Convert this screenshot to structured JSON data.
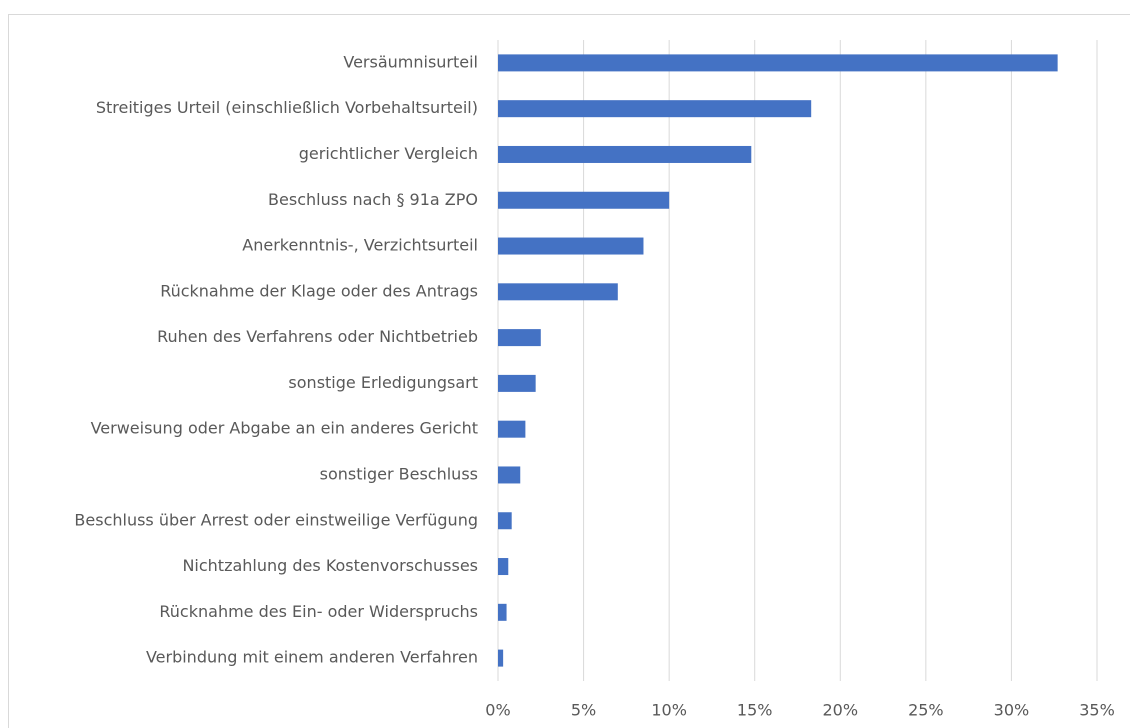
{
  "chart_data": {
    "type": "hbar",
    "categories": [
      "Versäumnisurteil",
      "Streitiges Urteil (einschließlich Vorbehaltsurteil)",
      "gerichtlicher Vergleich",
      "Beschluss nach § 91a ZPO",
      "Anerkenntnis-, Verzichtsurteil",
      "Rücknahme der Klage oder des Antrags",
      "Ruhen des Verfahrens oder Nichtbetrieb",
      "sonstige Erledigungsart",
      "Verweisung oder Abgabe an ein anderes Gericht",
      "sonstiger Beschluss",
      "Beschluss über Arrest oder einstweilige Verfügung",
      "Nichtzahlung des Kostenvorschusses",
      "Rücknahme des Ein- oder Widerspruchs",
      "Verbindung mit einem anderen Verfahren"
    ],
    "values": [
      32.7,
      18.3,
      14.8,
      10.0,
      8.5,
      7.0,
      2.5,
      2.2,
      1.6,
      1.3,
      0.8,
      0.6,
      0.5,
      0.3
    ],
    "color": "#4472c4",
    "xlim": [
      0,
      35
    ],
    "xticks": [
      {
        "value": 0,
        "label": "0%"
      },
      {
        "value": 5,
        "label": "5%"
      },
      {
        "value": 10,
        "label": "10%"
      },
      {
        "value": 15,
        "label": "15%"
      },
      {
        "value": 20,
        "label": "20%"
      },
      {
        "value": 25,
        "label": "25%"
      },
      {
        "value": 30,
        "label": "30%"
      },
      {
        "value": 35,
        "label": "35%"
      }
    ],
    "grid": true
  }
}
